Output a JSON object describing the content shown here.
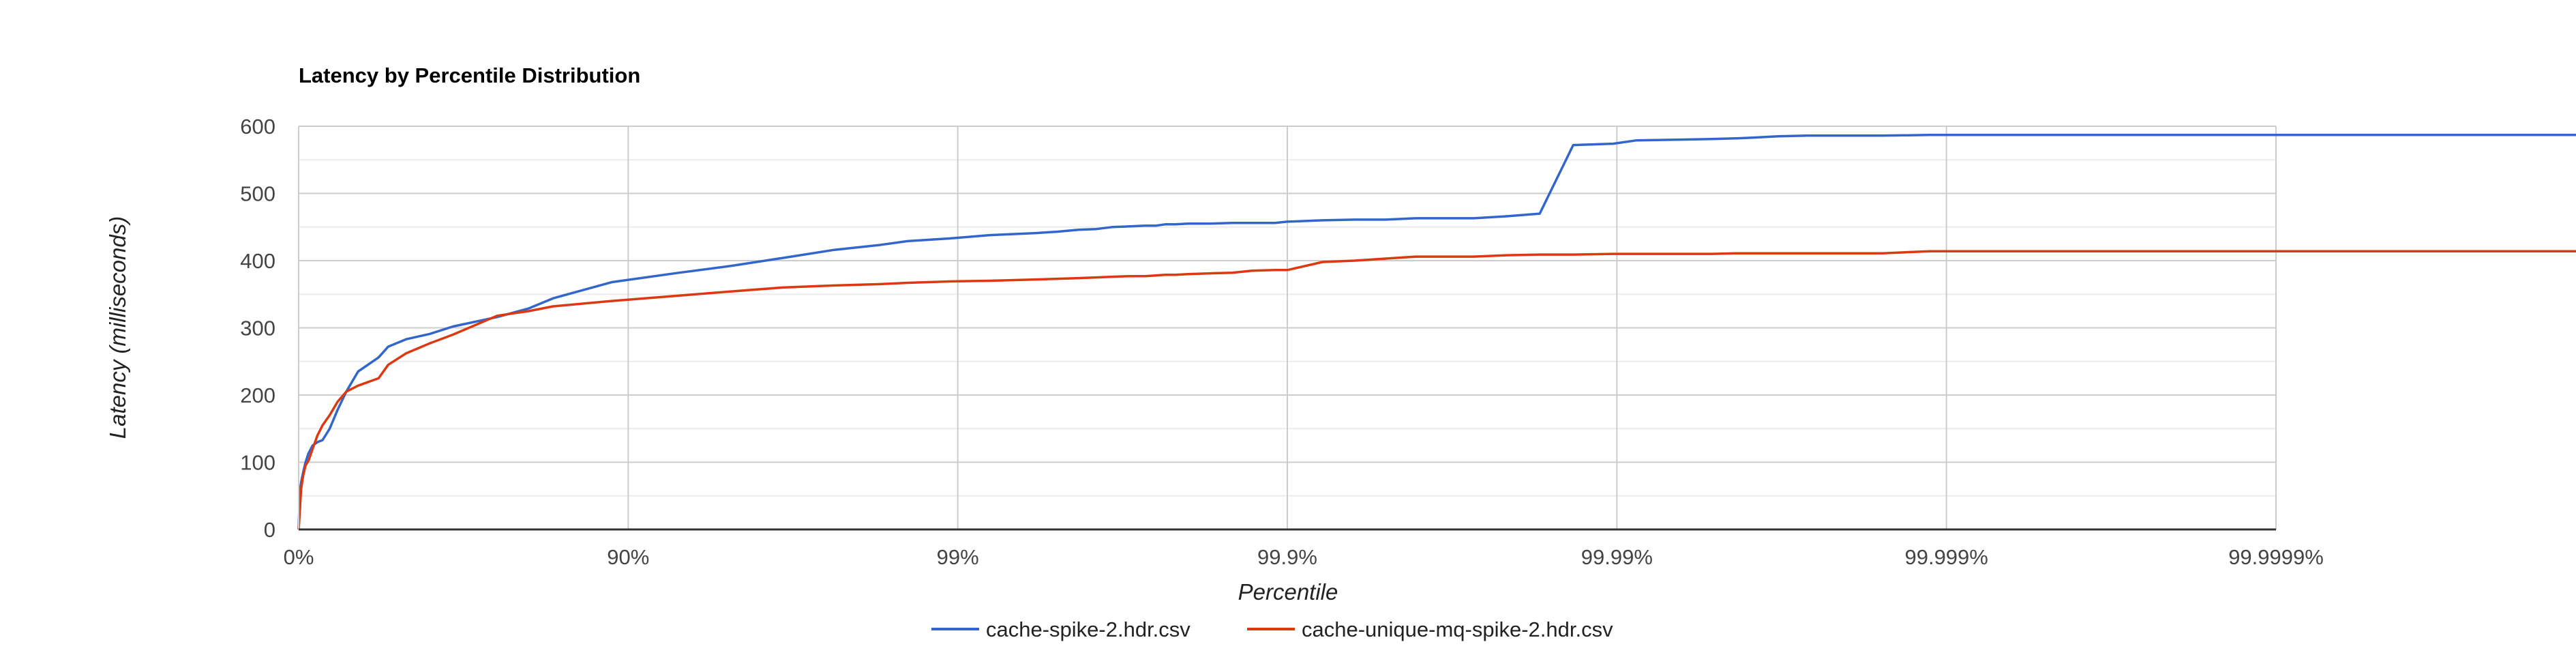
{
  "chart_data": {
    "type": "line",
    "title": "Latency by Percentile Distribution",
    "xlabel": "Percentile",
    "ylabel": "Latency (milliseconds)",
    "x_scale": "log-percentile (nines)",
    "x_ticks": [
      "0%",
      "90%",
      "99%",
      "99.9%",
      "99.99%",
      "99.999%",
      "99.9999%"
    ],
    "y_ticks": [
      "0",
      "100",
      "200",
      "300",
      "400",
      "500",
      "600"
    ],
    "ylim": [
      0,
      600
    ],
    "grid": true,
    "legend_position": "bottom",
    "series": [
      {
        "name": "cache-spike-2.hdr.csv",
        "color": "#3366cc",
        "x": [
          0,
          0.0075,
          0.017,
          0.031,
          0.047,
          0.066,
          0.093,
          0.123,
          0.154,
          0.195,
          0.238,
          0.283,
          0.34,
          0.428,
          0.465,
          0.528,
          0.6,
          0.66,
          0.75,
          0.8,
          0.831,
          0.888,
          0.93,
          0.951,
          0.966,
          0.9763,
          0.9826,
          0.9858,
          0.9894,
          0.992,
          0.9942,
          0.995,
          0.9957,
          0.9962,
          0.9966,
          0.997,
          0.9973,
          0.99749,
          0.99765,
          0.99781,
          0.998,
          0.99826,
          0.99853,
          0.99872,
          0.99891,
          0.999,
          0.999218,
          0.999375,
          0.999497,
          0.999592,
          0.999659,
          0.999728,
          0.9997837,
          0.9998286,
          0.9998643,
          0.9998974,
          0.9999129,
          0.9999343,
          0.9999484,
          0.9999567,
          0.9999612,
          0.9999676,
          0.9999735,
          0.999977,
          0.9999809,
          0.99998436,
          0.99998876,
          0.9999921,
          0.9999955,
          0.99999817,
          0.99999909,
          0.99999955
        ],
        "y": [
          0,
          55,
          70,
          85,
          100,
          113,
          125,
          130,
          133,
          150,
          178,
          205,
          235,
          256,
          272,
          283,
          291,
          302,
          316,
          329,
          344,
          368,
          382,
          392,
          404,
          416,
          423,
          429,
          433,
          438,
          441,
          443,
          446,
          447,
          450,
          451,
          452,
          452,
          454,
          454,
          455,
          455,
          456,
          456,
          456,
          458,
          460,
          461,
          461,
          463,
          463,
          463,
          466,
          470,
          572,
          574,
          579,
          580,
          581,
          582,
          583,
          585,
          586,
          586,
          586,
          586,
          587,
          587,
          587,
          587,
          587,
          587
        ]
      },
      {
        "name": "cache-unique-mq-spike-2.hdr.csv",
        "color": "#dc3912",
        "x": [
          0,
          0.0075,
          0.017,
          0.031,
          0.047,
          0.066,
          0.093,
          0.123,
          0.154,
          0.195,
          0.238,
          0.283,
          0.34,
          0.428,
          0.465,
          0.528,
          0.6,
          0.66,
          0.75,
          0.8,
          0.831,
          0.888,
          0.93,
          0.951,
          0.966,
          0.9763,
          0.9826,
          0.9858,
          0.9894,
          0.992,
          0.9942,
          0.995,
          0.9957,
          0.9962,
          0.9966,
          0.997,
          0.9973,
          0.99749,
          0.99765,
          0.99781,
          0.998,
          0.99826,
          0.99853,
          0.99872,
          0.99891,
          0.999,
          0.999218,
          0.999375,
          0.999497,
          0.999592,
          0.999659,
          0.999728,
          0.9997837,
          0.9998286,
          0.9998643,
          0.9998974,
          0.9999129,
          0.9999343,
          0.9999484,
          0.9999567,
          0.9999612,
          0.9999676,
          0.9999735,
          0.999977,
          0.9999809,
          0.99998436,
          0.99998876,
          0.9999921,
          0.9999955,
          0.99999817,
          0.99999909,
          0.99999955
        ],
        "y": [
          0,
          25,
          60,
          80,
          95,
          102,
          120,
          140,
          155,
          170,
          190,
          205,
          214,
          225,
          245,
          262,
          277,
          290,
          318,
          325,
          332,
          340,
          348,
          354,
          360,
          363,
          365,
          367,
          369,
          370,
          372,
          373,
          374,
          375,
          376,
          377,
          377,
          378,
          379,
          379,
          380,
          381,
          382,
          385,
          386,
          386,
          398,
          400,
          403,
          406,
          406,
          406,
          408,
          409,
          409,
          410,
          410,
          410,
          410,
          411,
          411,
          411,
          411,
          411,
          411,
          411,
          414,
          414,
          414,
          414,
          414,
          414
        ]
      }
    ]
  }
}
